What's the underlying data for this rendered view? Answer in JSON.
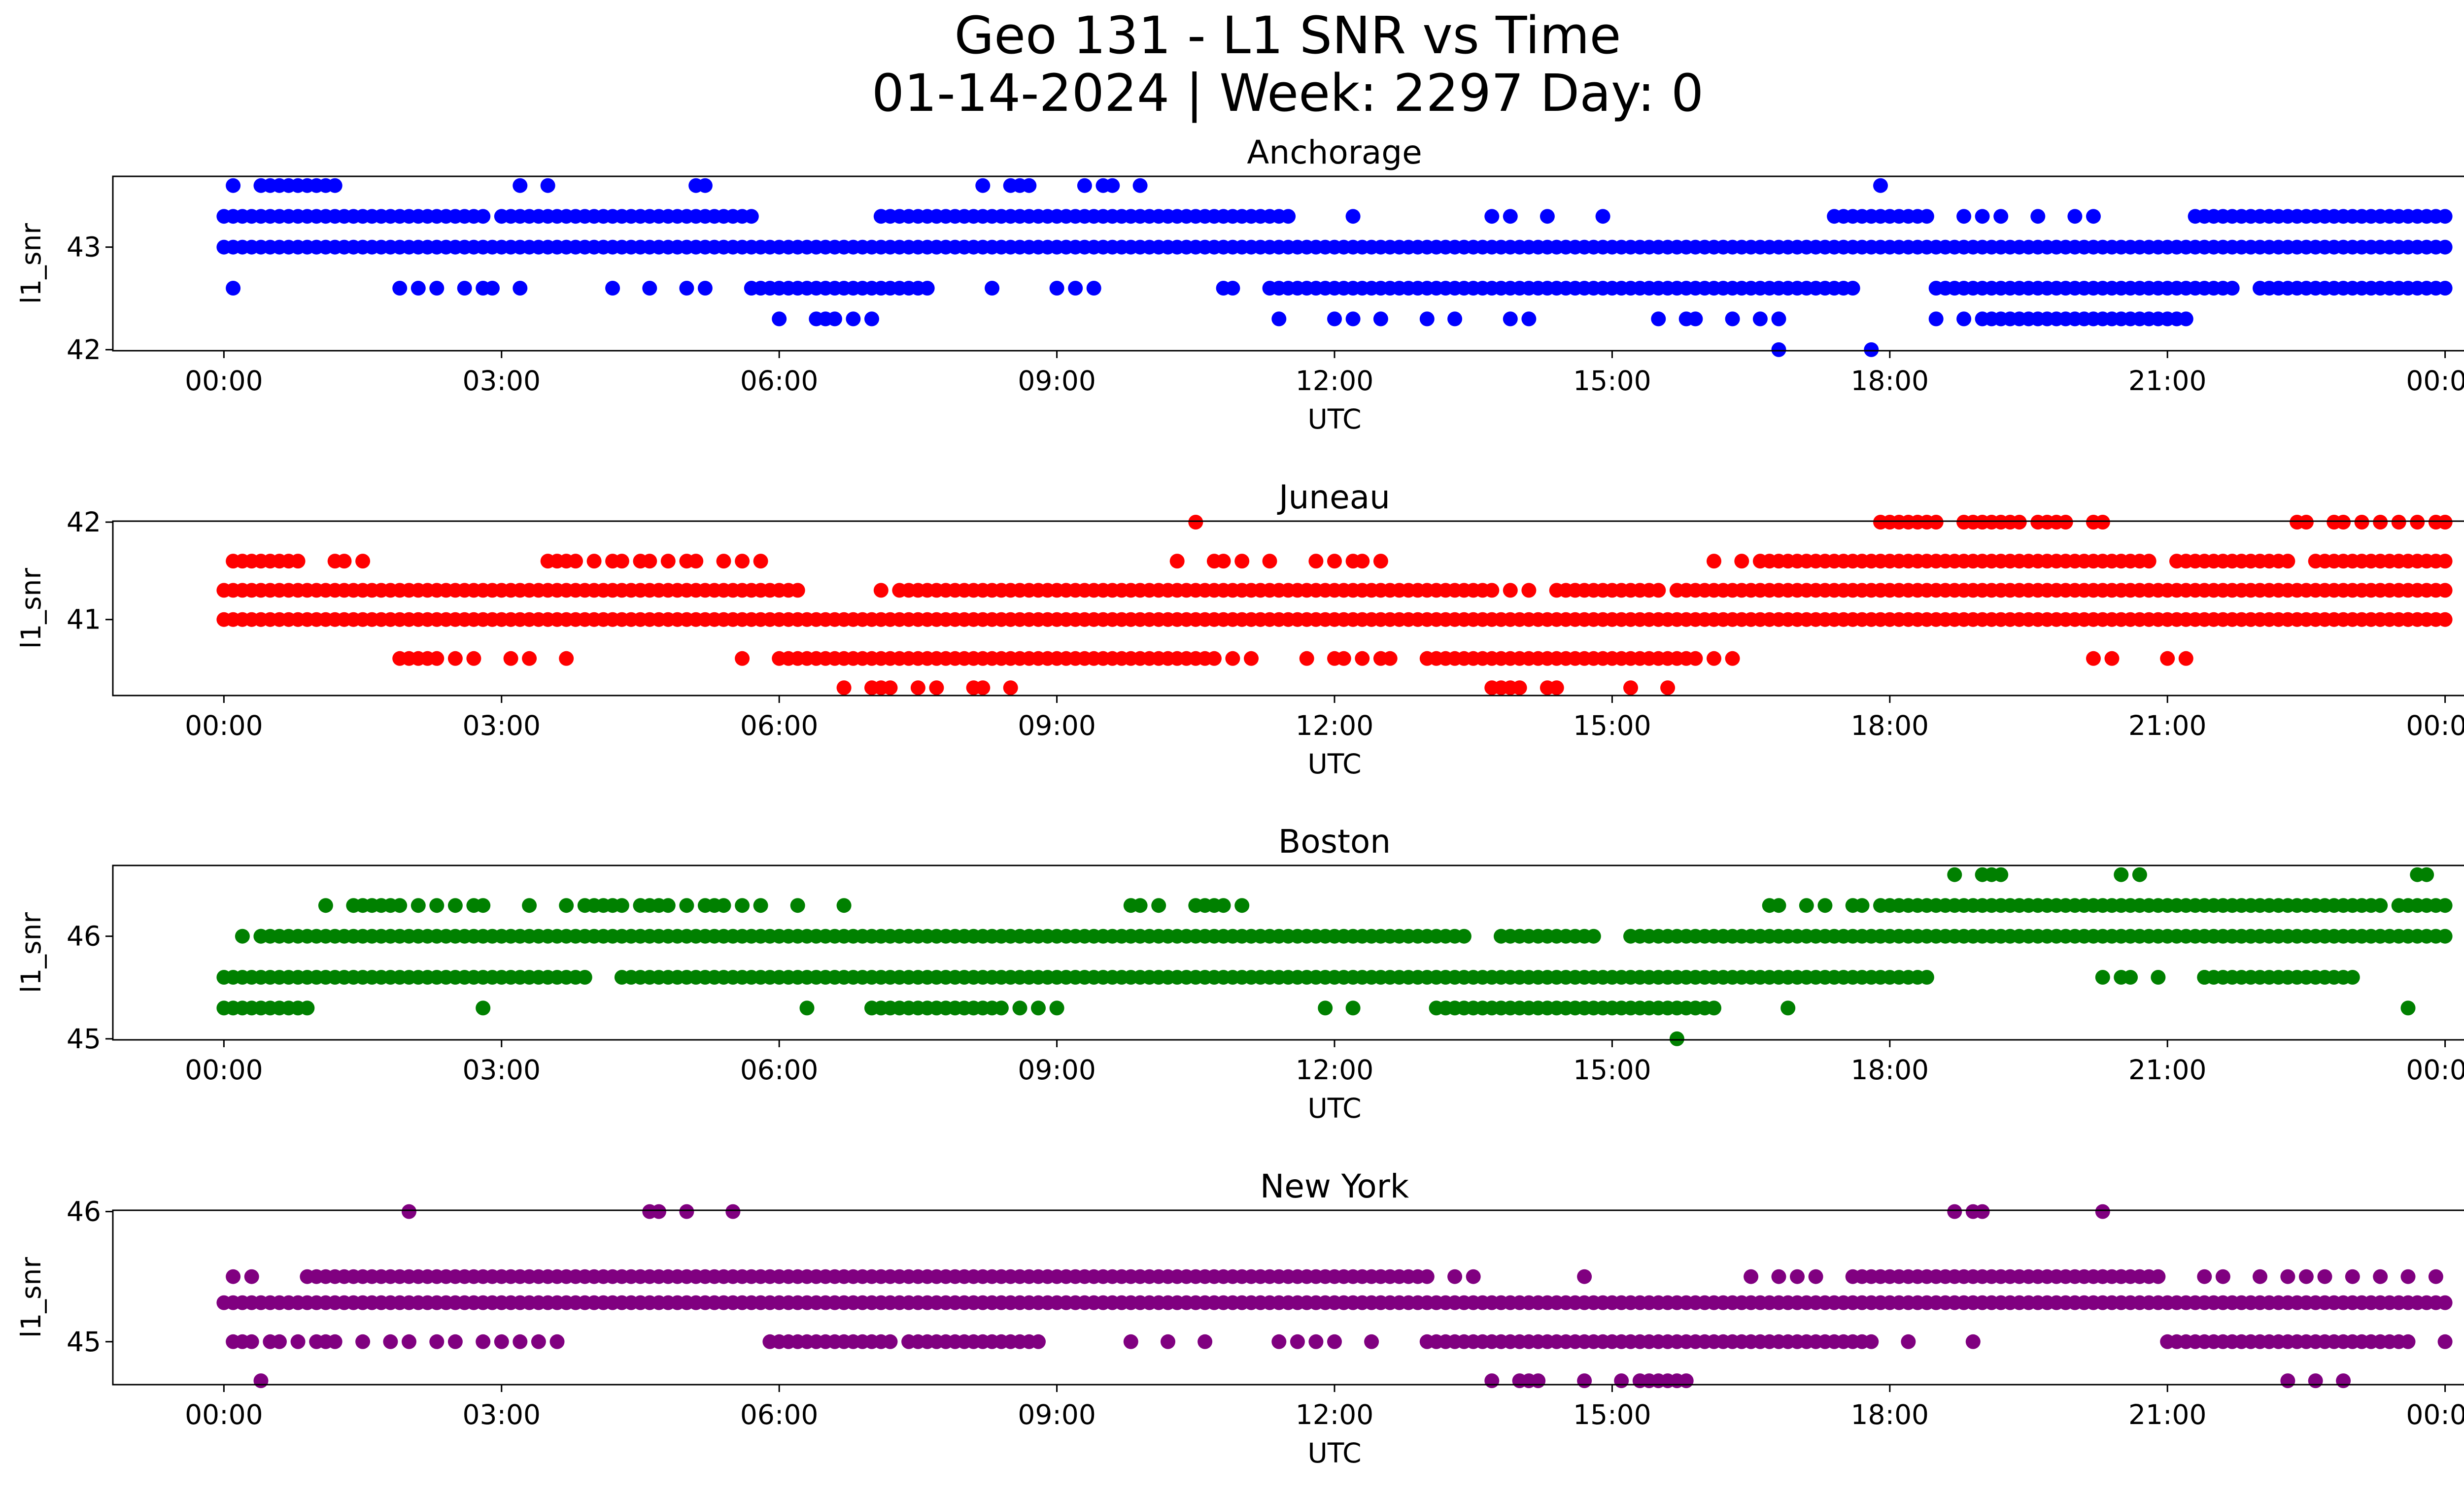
{
  "title_line1": "Geo 131 - L1 SNR vs Time",
  "title_line2": "01-14-2024 | Week: 2297 Day: 0",
  "chart_data": [
    {
      "type": "scatter",
      "title": "Anchorage",
      "xlabel": "UTC",
      "ylabel": "l1_snr",
      "color": "#0000ff",
      "x_unit": "hours UTC (0 = 2024-01-14 00:00, 24 = 2024-01-15 00:00)",
      "xlim": [
        -1.2,
        25.2
      ],
      "xticks": [
        0,
        3,
        6,
        9,
        12,
        15,
        18,
        21,
        24
      ],
      "xtick_labels": [
        "00:00",
        "03:00",
        "06:00",
        "09:00",
        "12:00",
        "15:00",
        "18:00",
        "21:00",
        "00:00"
      ],
      "ylim": [
        41.99,
        43.69
      ],
      "yticks": [
        42,
        43
      ],
      "ytick_labels": [
        "42",
        "43"
      ],
      "runs": [
        {
          "y": 43.0,
          "segments": [
            [
              0.0,
              24.0
            ]
          ]
        },
        {
          "y": 43.3,
          "segments": [
            [
              0.0,
              2.8
            ],
            [
              3.0,
              5.7
            ],
            [
              7.1,
              11.5
            ],
            [
              17.4,
              18.4
            ],
            [
              21.3,
              24.0
            ]
          ]
        },
        {
          "y": 42.6,
          "segments": [
            [
              5.7,
              7.6
            ],
            [
              10.8,
              10.9
            ],
            [
              11.3,
              17.6
            ],
            [
              18.5,
              21.7
            ],
            [
              22.0,
              24.0
            ]
          ]
        },
        {
          "y": 42.3,
          "segments": [
            [
              19.0,
              21.2
            ]
          ]
        }
      ],
      "points": [
        {
          "y": 43.6,
          "x": [
            0.1,
            0.4,
            0.5,
            0.6,
            0.7,
            0.8,
            0.9,
            1.0,
            1.1,
            1.2,
            3.2,
            3.5,
            5.1,
            5.2,
            8.2,
            8.5,
            8.6,
            8.7,
            9.3,
            9.5,
            9.6,
            9.9,
            17.9
          ]
        },
        {
          "y": 43.3,
          "x": [
            12.2,
            13.7,
            13.9,
            14.3,
            14.9,
            18.8,
            19.0,
            19.2,
            19.6,
            20.0,
            20.2
          ]
        },
        {
          "y": 42.6,
          "x": [
            0.1,
            1.9,
            2.1,
            2.3,
            2.6,
            2.8,
            2.9,
            3.2,
            4.2,
            4.6,
            5.0,
            5.2,
            8.3,
            9.0,
            9.2,
            9.4
          ]
        },
        {
          "y": 42.3,
          "x": [
            6.0,
            6.4,
            6.5,
            6.6,
            6.8,
            7.0,
            11.4,
            12.0,
            12.2,
            12.5,
            13.0,
            13.3,
            13.9,
            14.1,
            15.5,
            15.8,
            15.9,
            16.3,
            16.6,
            16.8,
            18.5,
            18.8
          ]
        },
        {
          "y": 42.0,
          "x": [
            16.8,
            17.8
          ]
        }
      ]
    },
    {
      "type": "scatter",
      "title": "Juneau",
      "xlabel": "UTC",
      "ylabel": "l1_snr",
      "color": "#ff0000",
      "x_unit": "hours UTC (0 = 2024-01-14 00:00, 24 = 2024-01-15 00:00)",
      "xlim": [
        -1.2,
        25.2
      ],
      "xticks": [
        0,
        3,
        6,
        9,
        12,
        15,
        18,
        21,
        24
      ],
      "xtick_labels": [
        "00:00",
        "03:00",
        "06:00",
        "09:00",
        "12:00",
        "15:00",
        "18:00",
        "21:00",
        "00:00"
      ],
      "ylim": [
        40.22,
        42.01
      ],
      "yticks": [
        41,
        42
      ],
      "ytick_labels": [
        "41",
        "42"
      ],
      "runs": [
        {
          "y": 41.0,
          "segments": [
            [
              0.0,
              24.0
            ]
          ]
        },
        {
          "y": 41.3,
          "segments": [
            [
              0.0,
              6.2
            ],
            [
              7.3,
              13.7
            ],
            [
              14.4,
              15.5
            ],
            [
              15.7,
              24.0
            ]
          ]
        },
        {
          "y": 41.6,
          "segments": [
            [
              16.6,
              20.8
            ],
            [
              21.1,
              22.2
            ],
            [
              22.6,
              24.0
            ]
          ]
        },
        {
          "y": 40.6,
          "segments": [
            [
              6.0,
              10.7
            ],
            [
              13.0,
              15.9
            ]
          ]
        }
      ],
      "points": [
        {
          "y": 42.0,
          "x": [
            10.5,
            17.9,
            18.0,
            18.1,
            18.2,
            18.3,
            18.4,
            18.5,
            18.8,
            18.9,
            19.0,
            19.1,
            19.2,
            19.3,
            19.4,
            19.6,
            19.7,
            19.8,
            19.9,
            20.2,
            20.3,
            22.4,
            22.5,
            22.8,
            22.9,
            23.1,
            23.3,
            23.5,
            23.7,
            23.9,
            24.0
          ]
        },
        {
          "y": 41.6,
          "x": [
            0.1,
            0.2,
            0.3,
            0.4,
            0.5,
            0.6,
            0.7,
            0.8,
            1.2,
            1.3,
            1.5,
            3.5,
            3.6,
            3.7,
            3.8,
            4.0,
            4.2,
            4.3,
            4.5,
            4.6,
            4.8,
            5.0,
            5.1,
            5.4,
            5.6,
            5.8,
            10.3,
            10.7,
            10.8,
            11.0,
            11.3,
            11.8,
            12.0,
            12.2,
            12.3,
            12.5,
            16.1,
            16.4,
            22.3
          ]
        },
        {
          "y": 41.3,
          "x": [
            7.1,
            13.9,
            14.1,
            14.6
          ]
        },
        {
          "y": 41.0,
          "x": [
            23.6
          ]
        },
        {
          "y": 40.6,
          "x": [
            1.9,
            2.0,
            2.1,
            2.2,
            2.3,
            2.5,
            2.7,
            3.1,
            3.3,
            3.7,
            5.6,
            10.9,
            11.1,
            11.7,
            12.0,
            12.1,
            12.3,
            12.5,
            12.6,
            16.1,
            16.3,
            20.2,
            20.4,
            21.0,
            21.2
          ]
        },
        {
          "y": 40.3,
          "x": [
            6.7,
            7.0,
            7.1,
            7.2,
            7.5,
            7.7,
            8.1,
            8.2,
            8.5,
            13.7,
            13.8,
            13.9,
            14.0,
            14.3,
            14.4,
            15.2,
            15.6
          ]
        }
      ]
    },
    {
      "type": "scatter",
      "title": "Boston",
      "xlabel": "UTC",
      "ylabel": "l1_snr",
      "color": "#008000",
      "x_unit": "hours UTC (0 = 2024-01-14 00:00, 24 = 2024-01-15 00:00)",
      "xlim": [
        -1.2,
        25.2
      ],
      "xticks": [
        0,
        3,
        6,
        9,
        12,
        15,
        18,
        21,
        24
      ],
      "xtick_labels": [
        "00:00",
        "03:00",
        "06:00",
        "09:00",
        "12:00",
        "15:00",
        "18:00",
        "21:00",
        "00:00"
      ],
      "ylim": [
        44.99,
        46.69
      ],
      "yticks": [
        45,
        46
      ],
      "ytick_labels": [
        "45",
        "46"
      ],
      "runs": [
        {
          "y": 46.0,
          "segments": [
            [
              0.4,
              13.4
            ],
            [
              13.8,
              14.8
            ],
            [
              15.2,
              24.0
            ]
          ]
        },
        {
          "y": 45.6,
          "segments": [
            [
              0.0,
              3.9
            ],
            [
              4.3,
              18.4
            ],
            [
              21.4,
              23.0
            ]
          ]
        },
        {
          "y": 45.3,
          "segments": [
            [
              7.0,
              8.4
            ],
            [
              13.1,
              16.1
            ]
          ]
        },
        {
          "y": 46.3,
          "segments": [
            [
              17.9,
              23.3
            ],
            [
              23.5,
              24.0
            ]
          ]
        }
      ],
      "points": [
        {
          "y": 46.6,
          "x": [
            18.7,
            19.0,
            19.1,
            19.2,
            20.5,
            20.7,
            23.7,
            23.8
          ]
        },
        {
          "y": 46.3,
          "x": [
            1.1,
            1.4,
            1.5,
            1.6,
            1.7,
            1.8,
            1.9,
            2.1,
            2.3,
            2.5,
            2.7,
            2.8,
            3.3,
            3.7,
            3.9,
            4.0,
            4.1,
            4.2,
            4.3,
            4.5,
            4.6,
            4.7,
            4.8,
            5.0,
            5.2,
            5.3,
            5.4,
            5.6,
            5.8,
            6.2,
            6.7,
            9.8,
            9.9,
            10.1,
            10.5,
            10.6,
            10.7,
            10.8,
            11.0,
            16.7,
            16.8,
            17.1,
            17.3,
            17.6,
            17.7
          ]
        },
        {
          "y": 46.0,
          "x": [
            0.2,
            0.4
          ]
        },
        {
          "y": 45.6,
          "x": [
            20.3,
            20.5,
            20.6,
            20.9,
            21.4
          ]
        },
        {
          "y": 45.3,
          "x": [
            0.0,
            0.1,
            0.2,
            0.3,
            0.4,
            0.5,
            0.6,
            0.7,
            0.8,
            0.9,
            2.8,
            6.3,
            8.6,
            8.8,
            9.0,
            11.9,
            12.2,
            16.9,
            23.6
          ]
        },
        {
          "y": 45.0,
          "x": [
            15.7
          ]
        }
      ]
    },
    {
      "type": "scatter",
      "title": "New York",
      "xlabel": "UTC",
      "ylabel": "l1_snr",
      "color": "#800080",
      "x_unit": "hours UTC (0 = 2024-01-14 00:00, 24 = 2024-01-15 00:00)",
      "xlim": [
        -1.2,
        25.2
      ],
      "xticks": [
        0,
        3,
        6,
        9,
        12,
        15,
        18,
        21,
        24
      ],
      "xtick_labels": [
        "00:00",
        "03:00",
        "06:00",
        "09:00",
        "12:00",
        "15:00",
        "18:00",
        "21:00",
        "00:00"
      ],
      "ylim": [
        44.67,
        46.01
      ],
      "yticks": [
        45,
        46
      ],
      "ytick_labels": [
        "45",
        "46"
      ],
      "runs": [
        {
          "y": 45.3,
          "segments": [
            [
              0.0,
              24.0
            ]
          ]
        },
        {
          "y": 45.5,
          "segments": [
            [
              0.9,
              13.0
            ],
            [
              17.6,
              20.9
            ]
          ]
        },
        {
          "y": 45.0,
          "segments": [
            [
              6.0,
              7.2
            ],
            [
              7.4,
              8.8
            ],
            [
              13.0,
              17.8
            ],
            [
              21.0,
              23.6
            ]
          ]
        }
      ],
      "points": [
        {
          "y": 46.0,
          "x": [
            2.0,
            4.6,
            4.7,
            5.0,
            5.5,
            18.7,
            18.9,
            19.0,
            20.3
          ]
        },
        {
          "y": 45.5,
          "x": [
            0.1,
            0.3,
            13.3,
            13.5,
            14.7,
            16.5,
            16.8,
            17.0,
            17.2,
            20.3,
            20.5,
            20.7,
            21.4,
            21.6,
            22.0,
            22.3,
            22.5,
            22.7,
            23.0,
            23.3,
            23.6,
            23.9
          ]
        },
        {
          "y": 45.0,
          "x": [
            0.1,
            0.2,
            0.3,
            0.5,
            0.6,
            0.8,
            1.0,
            1.1,
            1.2,
            1.5,
            1.8,
            2.0,
            2.3,
            2.5,
            2.8,
            3.0,
            3.2,
            3.4,
            3.6,
            5.9,
            9.8,
            10.2,
            10.6,
            11.4,
            11.6,
            11.8,
            12.0,
            12.4,
            18.2,
            18.9,
            24.0
          ]
        },
        {
          "y": 44.7,
          "x": [
            0.4,
            13.7,
            14.0,
            14.1,
            14.2,
            14.7,
            15.1,
            15.3,
            15.4,
            15.5,
            15.6,
            15.7,
            15.8,
            22.3,
            22.6,
            22.9
          ]
        }
      ]
    }
  ]
}
